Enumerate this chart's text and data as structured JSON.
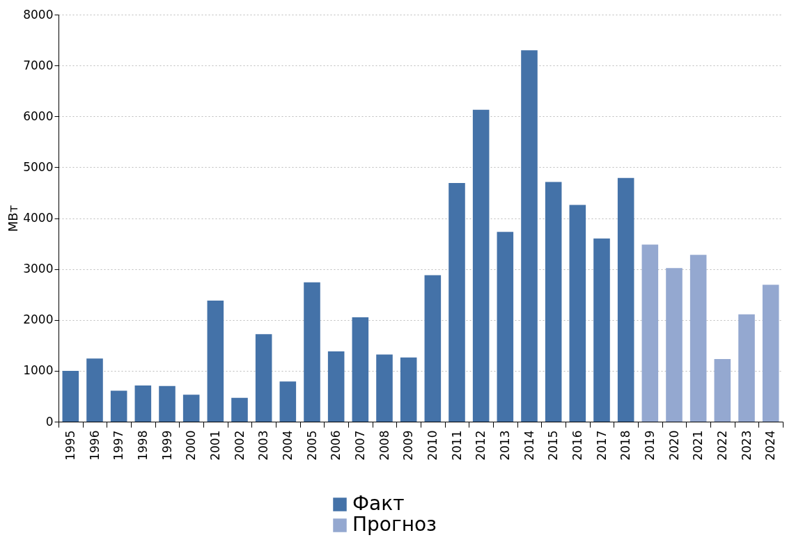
{
  "chart_data": {
    "type": "bar",
    "ylabel": "МВт",
    "categories": [
      "1995",
      "1996",
      "1997",
      "1998",
      "1999",
      "2000",
      "2001",
      "2002",
      "2003",
      "2004",
      "2005",
      "2006",
      "2007",
      "2008",
      "2009",
      "2010",
      "2011",
      "2012",
      "2013",
      "2014",
      "2015",
      "2016",
      "2017",
      "2018",
      "2019",
      "2020",
      "2021",
      "2022",
      "2023",
      "2024"
    ],
    "series": [
      {
        "name": "Факт",
        "color": "#4472a8",
        "values": [
          1000,
          1240,
          610,
          710,
          700,
          530,
          2380,
          470,
          1720,
          790,
          2740,
          1380,
          2050,
          1320,
          1260,
          2880,
          4690,
          6130,
          3730,
          7300,
          4710,
          4260,
          3600,
          4790,
          null,
          null,
          null,
          null,
          null,
          null
        ]
      },
      {
        "name": "Прогноз",
        "color": "#94a8d0",
        "values": [
          null,
          null,
          null,
          null,
          null,
          null,
          null,
          null,
          null,
          null,
          null,
          null,
          null,
          null,
          null,
          null,
          null,
          null,
          null,
          null,
          null,
          null,
          null,
          null,
          3480,
          3020,
          3280,
          1230,
          2110,
          2690
        ]
      }
    ],
    "ylim": [
      0,
      8000
    ],
    "yticks": [
      0,
      1000,
      2000,
      3000,
      4000,
      5000,
      6000,
      7000,
      8000
    ],
    "grid": "y",
    "legend": "bottom"
  }
}
